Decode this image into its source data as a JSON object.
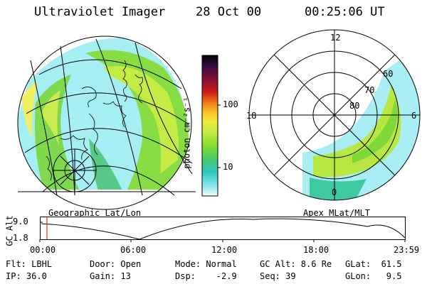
{
  "header": {
    "instrument": "Ultraviolet Imager",
    "date": "28 Oct 00",
    "time": "00:25:06 UT"
  },
  "geo_panel": {
    "label": "Geographic Lat/Lon"
  },
  "apex_panel": {
    "label": "Apex MLat/MLT",
    "mlt_labels": [
      "12",
      "18",
      "6",
      "0"
    ],
    "mlat_labels": [
      "60",
      "70",
      "80"
    ]
  },
  "colorbar": {
    "unit_label": "photon cm⁻²s⁻¹",
    "ticks": [
      "100",
      "10"
    ],
    "colors": [
      "#000000",
      "#2a0a3e",
      "#5a1450",
      "#8a1030",
      "#c8181a",
      "#e83a10",
      "#f07810",
      "#f8b020",
      "#f8e040",
      "#d8f040",
      "#a8e838",
      "#70d830",
      "#40c878",
      "#30c8b8",
      "#50d8e0",
      "#a0ecf0",
      "#e8fafc"
    ]
  },
  "altitude_plot": {
    "ylabel": "GC Alt",
    "y_ticks": [
      "9.0",
      "1.8"
    ],
    "x_ticks": [
      "00:00",
      "06:00",
      "12:00",
      "18:00",
      "23:59"
    ]
  },
  "info": {
    "row1": [
      "Flt: LBHL",
      "Door: Open",
      "Mode: Normal",
      "GC Alt: 8.6 Re",
      "GLat:  61.5"
    ],
    "row2": [
      "IP: 36.0",
      "Gain: 13",
      "Dsp:    -2.9",
      "Seq: 39",
      "GLon:   9.5"
    ]
  }
}
